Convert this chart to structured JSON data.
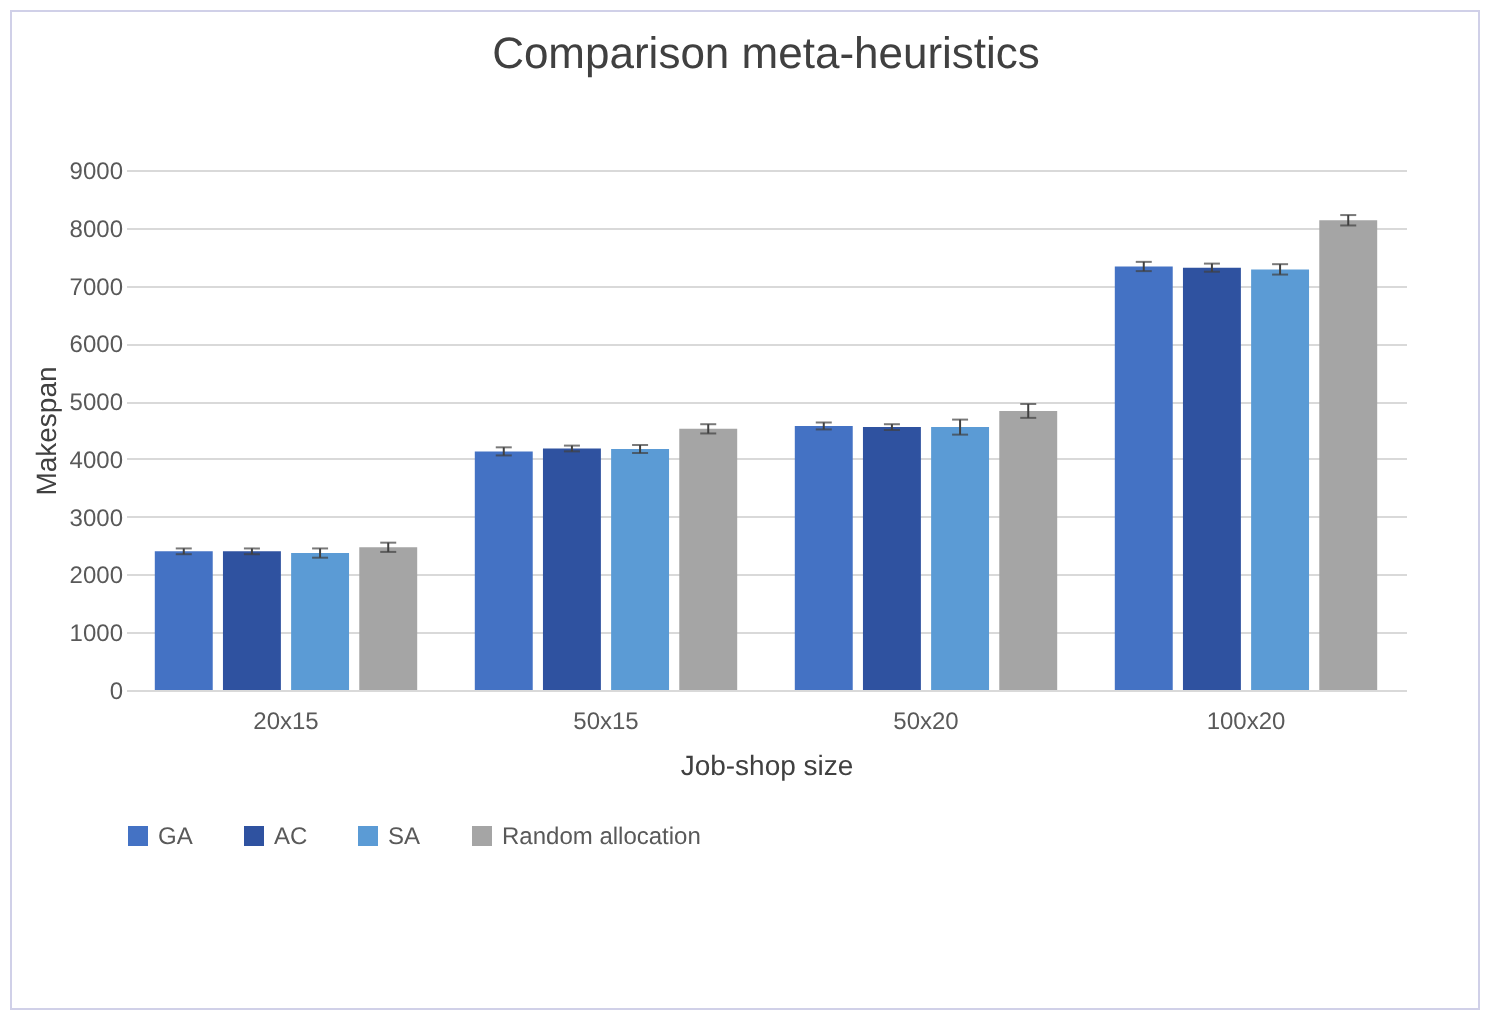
{
  "chart_data": {
    "type": "bar",
    "title": "Comparison meta-heuristics",
    "xlabel": "Job-shop size",
    "ylabel": "Makespan",
    "categories": [
      "20x15",
      "50x15",
      "50x20",
      "100x20"
    ],
    "series": [
      {
        "name": "GA",
        "color": "#4472c4",
        "values": [
          2400,
          4130,
          4570,
          7330
        ],
        "errors": [
          50,
          70,
          60,
          80
        ]
      },
      {
        "name": "AC",
        "color": "#2f52a0",
        "values": [
          2400,
          4180,
          4550,
          7310
        ],
        "errors": [
          50,
          50,
          50,
          70
        ]
      },
      {
        "name": "SA",
        "color": "#5b9bd5",
        "values": [
          2370,
          4170,
          4550,
          7280
        ],
        "errors": [
          80,
          70,
          130,
          90
        ]
      },
      {
        "name": "Random allocation",
        "color": "#a5a5a5",
        "values": [
          2470,
          4520,
          4830,
          8130
        ],
        "errors": [
          80,
          80,
          120,
          90
        ]
      }
    ],
    "ylim": [
      0,
      9000
    ],
    "yticks": [
      0,
      1000,
      2000,
      3000,
      4000,
      5000,
      6000,
      7000,
      8000,
      9000
    ],
    "grid": "y",
    "legend": "bottom"
  }
}
